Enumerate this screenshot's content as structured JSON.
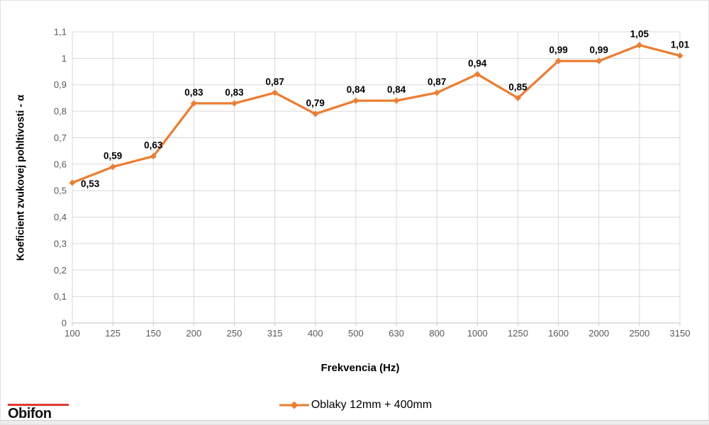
{
  "chart_data": {
    "type": "line",
    "title": "",
    "xlabel": "Frekvencia (Hz)",
    "ylabel": "Koeficient zvukovej pohltivosti - α",
    "categories": [
      "100",
      "125",
      "150",
      "200",
      "250",
      "315",
      "400",
      "500",
      "630",
      "800",
      "1000",
      "1250",
      "1600",
      "2000",
      "2500",
      "3150"
    ],
    "series": [
      {
        "name": "Oblaky 12mm + 400mm",
        "values": [
          0.53,
          0.59,
          0.63,
          0.83,
          0.83,
          0.87,
          0.79,
          0.84,
          0.84,
          0.87,
          0.94,
          0.85,
          0.99,
          0.99,
          1.05,
          1.01
        ],
        "point_labels": [
          "0,53",
          "0,59",
          "0,63",
          "0,83",
          "0,83",
          "0,87",
          "0,79",
          "0,84",
          "0,84",
          "0,87",
          "0,94",
          "0,85",
          "0,99",
          "0,99",
          "1,05",
          "1,01"
        ],
        "color": "#ED7D31",
        "marker": "diamond"
      }
    ],
    "ylim": [
      0,
      1.1
    ],
    "ytick_step": 0.1,
    "ytick_labels": [
      "0",
      "0,1",
      "0,2",
      "0,3",
      "0,4",
      "0,5",
      "0,6",
      "0,7",
      "0,8",
      "0,9",
      "1",
      "1,1"
    ],
    "grid": "both",
    "legend_position": "bottom"
  },
  "legend": {
    "label": "Oblaky 12mm + 400mm"
  },
  "logo": {
    "text": "Obifon",
    "accent_color": "#e03a2f"
  },
  "colors": {
    "series": "#ED7D31",
    "gridline": "#d9d9d9",
    "tick_text": "#595959",
    "data_label": "#000000"
  }
}
